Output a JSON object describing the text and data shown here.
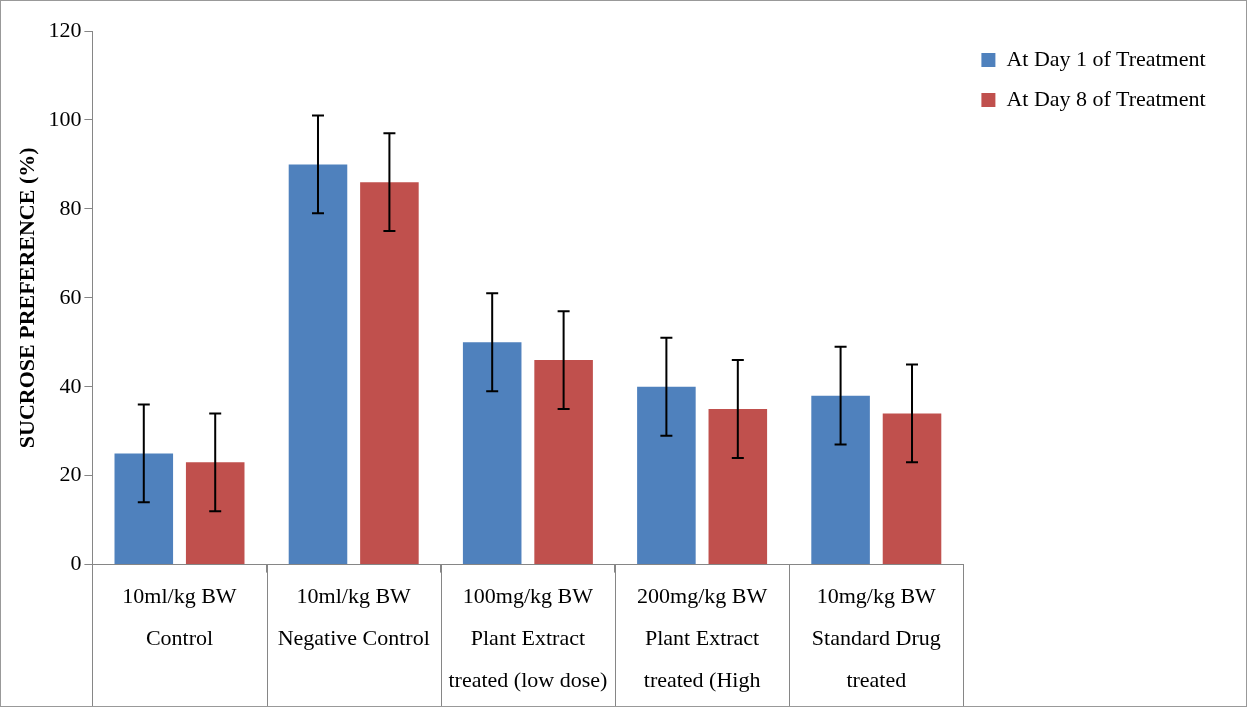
{
  "chart_data": {
    "type": "bar",
    "ylabel": "SUCROSE PREFERENCE (%)",
    "categories": [
      "10ml/kg BW\nControl",
      "10ml/kg BW\nNegative Control",
      "100mg/kg BW\nPlant Extract\ntreated (low dose)",
      "200mg/kg BW\nPlant Extract\ntreated (High",
      "10mg/kg BW\nStandard Drug\ntreated"
    ],
    "series": [
      {
        "name": "At Day 1 of Treatment",
        "color": "#4f81bd",
        "values": [
          25,
          90,
          50,
          40,
          38
        ],
        "errors": [
          11,
          11,
          11,
          11,
          11
        ]
      },
      {
        "name": "At Day 8 of Treatment",
        "color": "#c0504d",
        "values": [
          23,
          86,
          46,
          35,
          34
        ],
        "errors": [
          11,
          11,
          11,
          11,
          11
        ]
      }
    ],
    "ylim": [
      0,
      120
    ],
    "yticks": [
      0,
      20,
      40,
      60,
      80,
      100,
      120
    ],
    "grid": false,
    "legend": "right"
  }
}
